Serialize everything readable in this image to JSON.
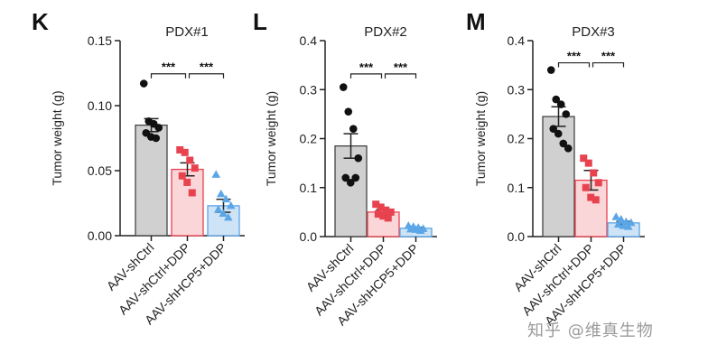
{
  "chart_data": [
    {
      "type": "bar",
      "panel": "K",
      "title": "PDX#1",
      "ylabel": "Tumor weight (g)",
      "xlabel": "",
      "ylim": [
        0,
        0.15
      ],
      "yticks": [
        "0.00",
        "0.05",
        "0.10",
        "0.15"
      ],
      "ytick_values": [
        0,
        0.05,
        0.1,
        0.15
      ],
      "categories": [
        "AAV-shCtrl",
        "AAV-shCtrl+DDP",
        "AAV-shHCP5+DDP"
      ],
      "means": [
        0.085,
        0.051,
        0.023
      ],
      "errors": [
        0.005,
        0.005,
        0.005
      ],
      "points": [
        [
          0.117,
          0.088,
          0.086,
          0.083,
          0.079,
          0.076,
          0.075
        ],
        [
          0.066,
          0.064,
          0.058,
          0.052,
          0.046,
          0.041,
          0.033
        ],
        [
          0.047,
          0.032,
          0.028,
          0.023,
          0.02,
          0.017,
          0.014
        ]
      ],
      "significance": [
        "***",
        "***"
      ]
    },
    {
      "type": "bar",
      "panel": "L",
      "title": "PDX#2",
      "ylabel": "Tumor weight (g)",
      "xlabel": "",
      "ylim": [
        0,
        0.4
      ],
      "yticks": [
        "0.0",
        "0.1",
        "0.2",
        "0.3",
        "0.4"
      ],
      "ytick_values": [
        0,
        0.1,
        0.2,
        0.3,
        0.4
      ],
      "categories": [
        "AAV-shCtrl",
        "AAV-shCtrl+DDP",
        "AAV-shHCP5+DDP"
      ],
      "means": [
        0.185,
        0.05,
        0.017
      ],
      "errors": [
        0.025,
        0.005,
        0.002
      ],
      "points": [
        [
          0.305,
          0.255,
          0.22,
          0.16,
          0.12,
          0.11,
          0.12
        ],
        [
          0.066,
          0.06,
          0.054,
          0.05,
          0.046,
          0.042,
          0.038
        ],
        [
          0.022,
          0.02,
          0.018,
          0.016,
          0.015,
          0.014,
          0.012
        ]
      ],
      "significance": [
        "***",
        "***"
      ]
    },
    {
      "type": "bar",
      "panel": "M",
      "title": "PDX#3",
      "ylabel": "Tumor weight (g)",
      "xlabel": "",
      "ylim": [
        0,
        0.4
      ],
      "yticks": [
        "0.0",
        "0.1",
        "0.2",
        "0.3",
        "0.4"
      ],
      "ytick_values": [
        0,
        0.1,
        0.2,
        0.3,
        0.4
      ],
      "categories": [
        "AAV-shCtrl",
        "AAV-shCtrl+DDP",
        "AAV-shHCP5+DDP"
      ],
      "means": [
        0.245,
        0.115,
        0.028
      ],
      "errors": [
        0.02,
        0.02,
        0.003
      ],
      "points": [
        [
          0.34,
          0.28,
          0.27,
          0.25,
          0.22,
          0.21,
          0.19,
          0.18
        ],
        [
          0.16,
          0.15,
          0.13,
          0.11,
          0.1,
          0.08,
          0.075
        ],
        [
          0.04,
          0.035,
          0.03,
          0.028,
          0.025,
          0.022,
          0.02
        ]
      ],
      "significance": [
        "***",
        "***"
      ]
    }
  ],
  "colors": {
    "group_fill": [
      "#d0d0d0",
      "#fbd6d8",
      "#cfe3f6"
    ],
    "group_point": [
      "#111111",
      "#e8424f",
      "#5aa6e6"
    ],
    "group_edge": [
      "#444444",
      "#e8424f",
      "#5aa6e6"
    ]
  },
  "markers": [
    "circle",
    "square",
    "triangle"
  ],
  "watermark": "知乎 @维真生物"
}
